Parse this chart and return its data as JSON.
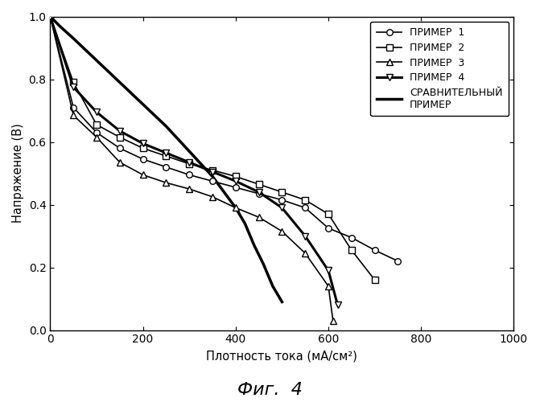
{
  "primer1": {
    "x": [
      0,
      50,
      100,
      150,
      200,
      250,
      300,
      350,
      400,
      450,
      500,
      550,
      600,
      650,
      700,
      750,
      800,
      850,
      900
    ],
    "y": [
      1.0,
      0.71,
      0.63,
      0.58,
      0.545,
      0.52,
      0.495,
      0.475,
      0.455,
      0.435,
      0.415,
      0.39,
      0.325,
      0.295,
      0.255,
      0.22,
      null,
      null,
      null
    ],
    "label": "ПРИМЕР  1",
    "marker": "o",
    "lw": 1.2
  },
  "primer2": {
    "x": [
      0,
      50,
      100,
      150,
      200,
      250,
      300,
      350,
      400,
      450,
      500,
      550,
      600,
      650,
      700,
      750
    ],
    "y": [
      1.0,
      0.79,
      0.655,
      0.615,
      0.58,
      0.555,
      0.53,
      0.51,
      0.49,
      0.465,
      0.44,
      0.415,
      0.37,
      0.255,
      0.16,
      null
    ],
    "label": "ПРИМЕР  2",
    "marker": "s",
    "lw": 1.2
  },
  "primer3": {
    "x": [
      0,
      50,
      100,
      150,
      200,
      250,
      300,
      350,
      400,
      450,
      500,
      550,
      600,
      610
    ],
    "y": [
      1.0,
      0.685,
      0.615,
      0.535,
      0.495,
      0.47,
      0.45,
      0.425,
      0.39,
      0.36,
      0.315,
      0.245,
      0.14,
      0.03
    ],
    "label": "ПРИМЕР  3",
    "marker": "^",
    "lw": 1.2
  },
  "primer4": {
    "x": [
      0,
      50,
      100,
      150,
      200,
      250,
      300,
      350,
      400,
      450,
      500,
      550,
      600,
      620,
      640
    ],
    "y": [
      1.0,
      0.775,
      0.695,
      0.635,
      0.595,
      0.565,
      0.535,
      0.505,
      0.475,
      0.44,
      0.39,
      0.3,
      0.19,
      0.08,
      null
    ],
    "label": "ПРИМЕР  4",
    "marker": "v",
    "lw": 2.2
  },
  "comparative": {
    "x": [
      0,
      20,
      50,
      100,
      150,
      200,
      250,
      300,
      350,
      400,
      420,
      440,
      460,
      480,
      500,
      510
    ],
    "y": [
      1.0,
      0.97,
      0.93,
      0.86,
      0.79,
      0.72,
      0.65,
      0.57,
      0.49,
      0.39,
      0.34,
      0.27,
      0.21,
      0.14,
      0.09,
      null
    ],
    "label": "СРАВНИТЕЛЬНЫЙ\nПРИМЕР",
    "marker": null,
    "lw": 2.5
  },
  "xlabel": "Плотность тока (мА/см²)",
  "ylabel": "Напряжение (В)",
  "xlim": [
    0,
    1000
  ],
  "ylim": [
    0,
    1.0
  ],
  "xticks": [
    0,
    200,
    400,
    600,
    800,
    1000
  ],
  "yticks": [
    0,
    0.2,
    0.4,
    0.6,
    0.8,
    1.0
  ],
  "figure_title": "Фиг.  4",
  "bg_color": "#ffffff"
}
